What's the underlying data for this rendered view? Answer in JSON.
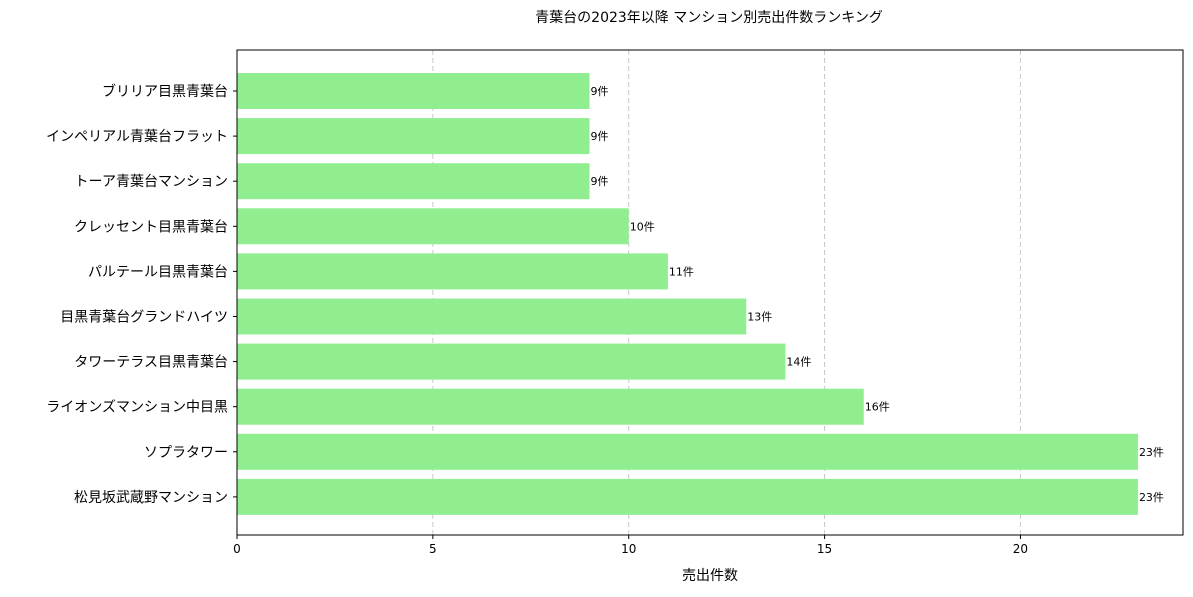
{
  "chart_data": {
    "type": "bar",
    "orientation": "horizontal",
    "title": "青葉台の2023年以降 マンション別売出件数ランキング",
    "xlabel": "売出件数",
    "ylabel": "",
    "categories": [
      "ブリリア目黒青葉台",
      "インペリアル青葉台フラット",
      "トーア青葉台マンション",
      "クレッセント目黒青葉台",
      "パルテール目黒青葉台",
      "目黒青葉台グランドハイツ",
      "タワーテラス目黒青葉台",
      "ライオンズマンション中目黒",
      "ソプラタワー",
      "松見坂武蔵野マンション"
    ],
    "values": [
      9,
      9,
      9,
      10,
      11,
      13,
      14,
      16,
      23,
      23
    ],
    "data_labels": [
      "9件",
      "9件",
      "9件",
      "10件",
      "11件",
      "13件",
      "14件",
      "16件",
      "23件",
      "23件"
    ],
    "xlim": [
      0,
      24.15
    ],
    "xticks": [
      0,
      5,
      10,
      15,
      20
    ],
    "grid": "x, dashed",
    "bar_color": "#90ee90"
  }
}
